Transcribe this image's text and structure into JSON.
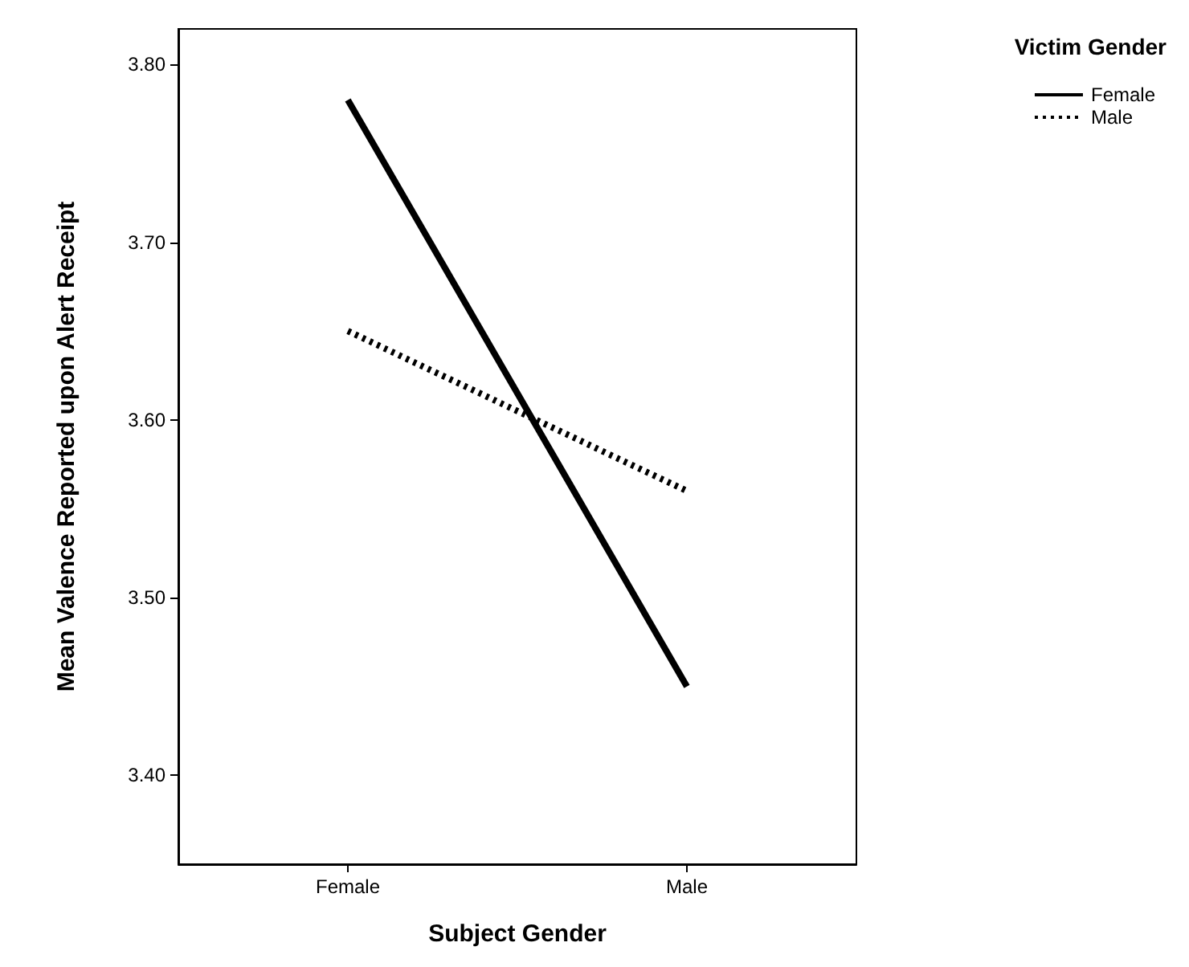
{
  "chart_data": {
    "type": "line",
    "xlabel": "Subject Gender",
    "ylabel": "Mean Valence Reported upon Alert Receipt",
    "legend_title": "Victim Gender",
    "categories": [
      "Female",
      "Male"
    ],
    "series": [
      {
        "name": "Female",
        "color": "#000000",
        "values": [
          3.78,
          3.45
        ],
        "line_style": "solid"
      },
      {
        "name": "Male",
        "color": "#000000",
        "values": [
          3.65,
          3.56
        ],
        "line_style": "dotted"
      }
    ],
    "ylim": [
      3.35,
      3.82
    ],
    "yticks": [
      {
        "value": 3.4,
        "label": "3.40"
      },
      {
        "value": 3.5,
        "label": "3.50"
      },
      {
        "value": 3.6,
        "label": "3.60"
      },
      {
        "value": 3.7,
        "label": "3.70"
      },
      {
        "value": 3.8,
        "label": "3.80"
      }
    ],
    "grid": false,
    "legend": "top right",
    "marker": "none"
  }
}
